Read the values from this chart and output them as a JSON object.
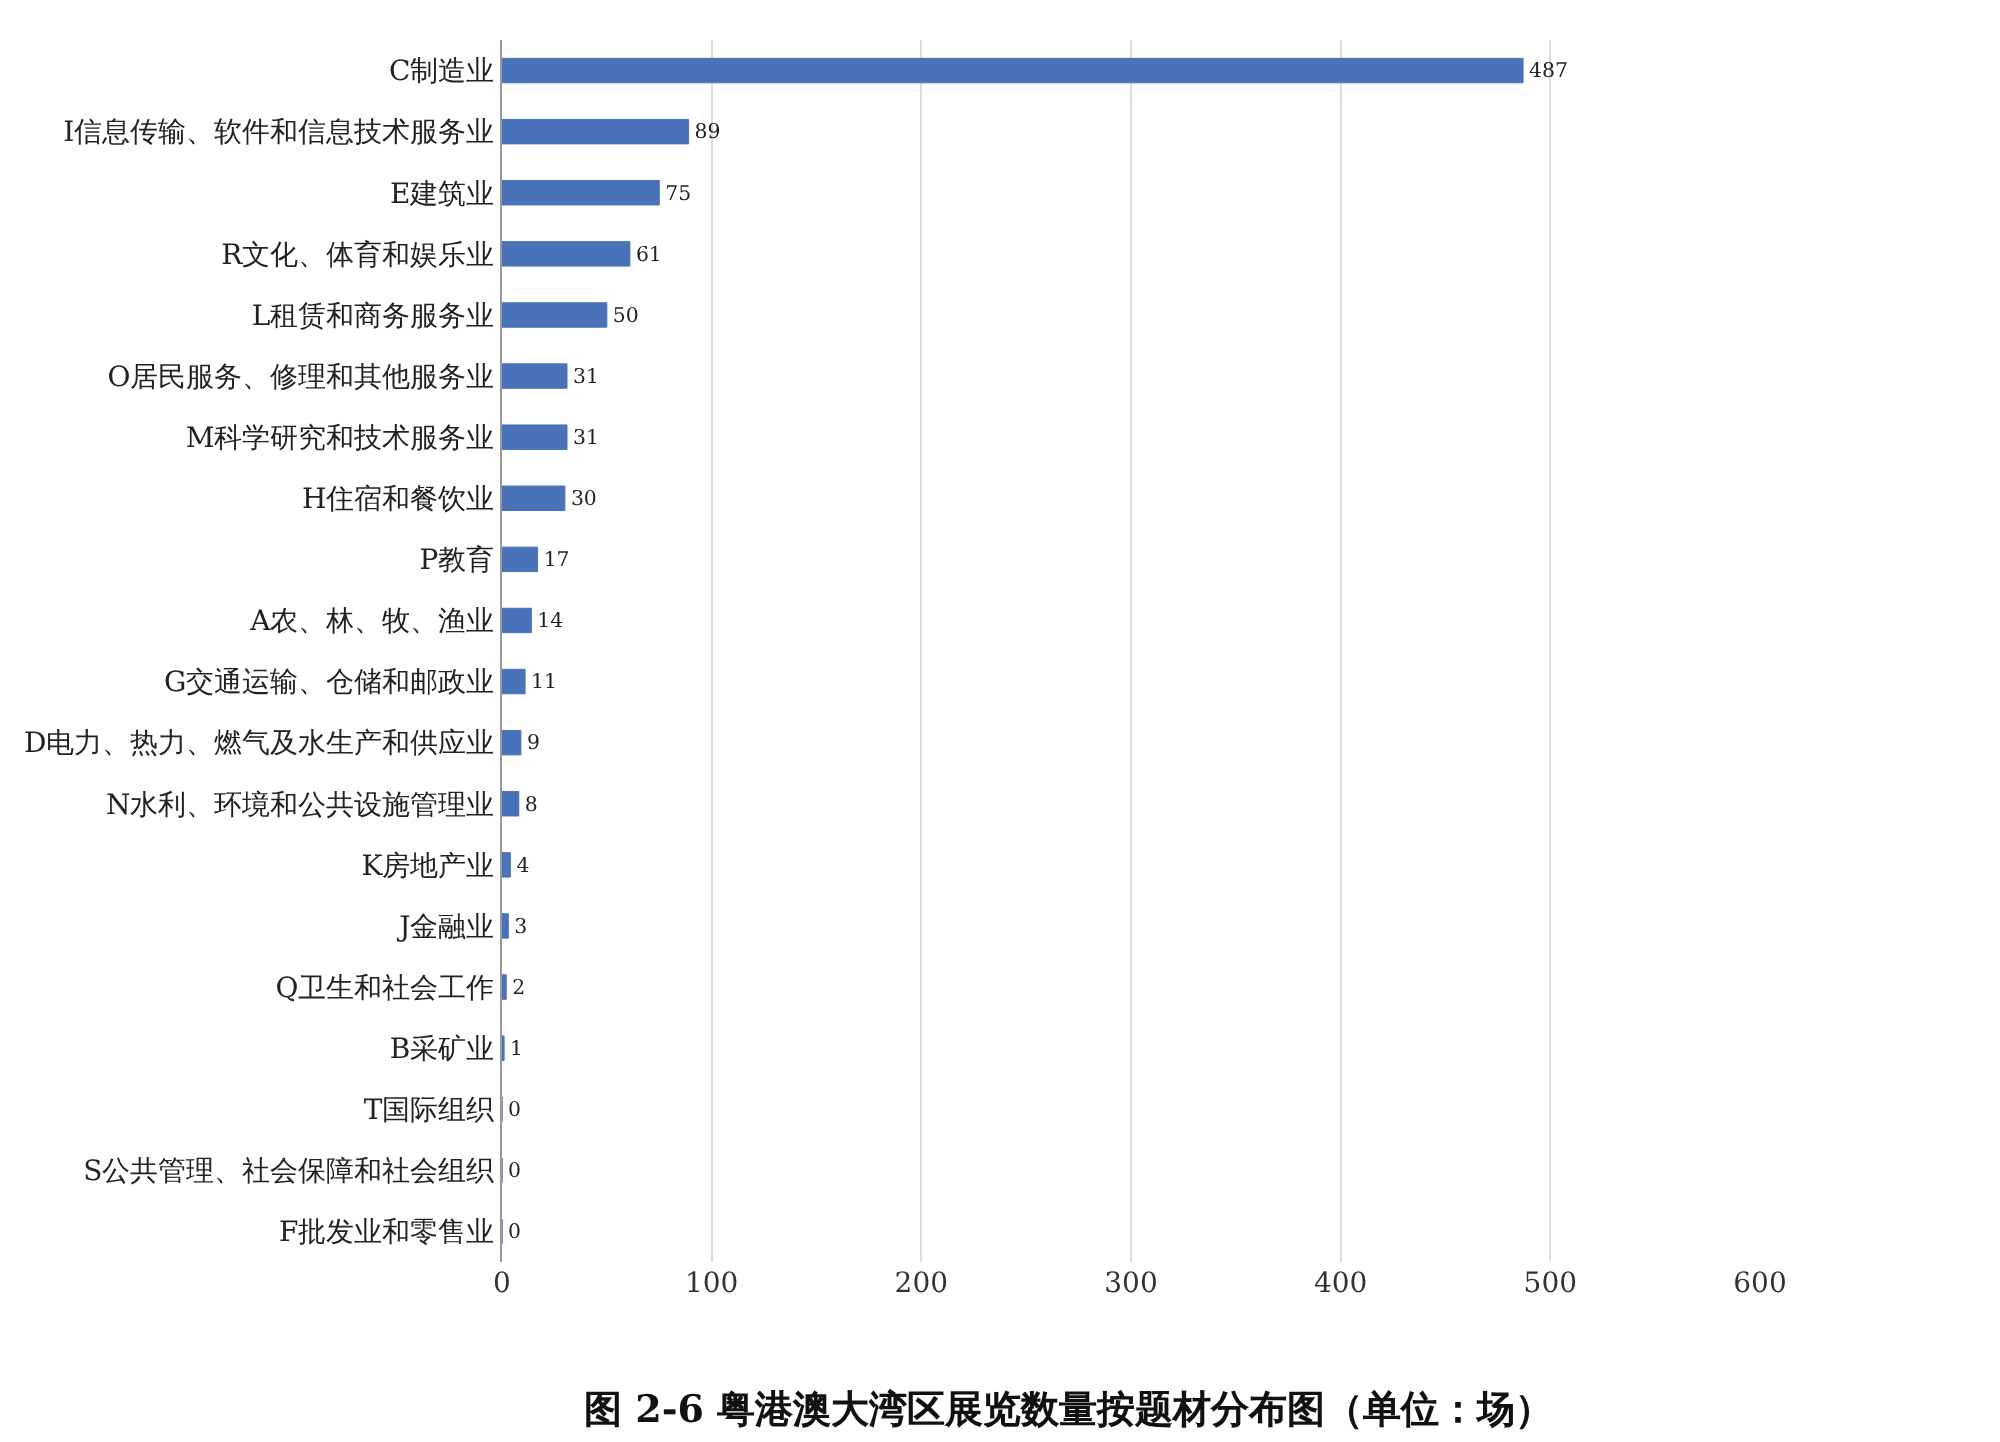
{
  "chart_data": {
    "type": "bar",
    "orientation": "horizontal",
    "title": "图 2-6 粤港澳大湾区展览数量按题材分布图（单位：场）",
    "categories": [
      "C制造业",
      "I信息传输、软件和信息技术服务业",
      "E建筑业",
      "R文化、体育和娱乐业",
      "L租赁和商务服务业",
      "O居民服务、修理和其他服务业",
      "M科学研究和技术服务业",
      "H住宿和餐饮业",
      "P教育",
      "A农、林、牧、渔业",
      "G交通运输、仓储和邮政业",
      "D电力、热力、燃气及水生产和供应业",
      "N水利、环境和公共设施管理业",
      "K房地产业",
      "J金融业",
      "Q卫生和社会工作",
      "B采矿业",
      "T国际组织",
      "S公共管理、社会保障和社会组织",
      "F批发业和零售业"
    ],
    "values": [
      487,
      89,
      75,
      61,
      50,
      31,
      31,
      30,
      17,
      14,
      11,
      9,
      8,
      4,
      3,
      2,
      1,
      0,
      0,
      0
    ],
    "color": "#4a72b8",
    "xlim": [
      0,
      600
    ],
    "xticks": [
      0,
      100,
      200,
      300,
      400,
      500,
      600
    ],
    "grid": "x",
    "data_labels": true
  }
}
